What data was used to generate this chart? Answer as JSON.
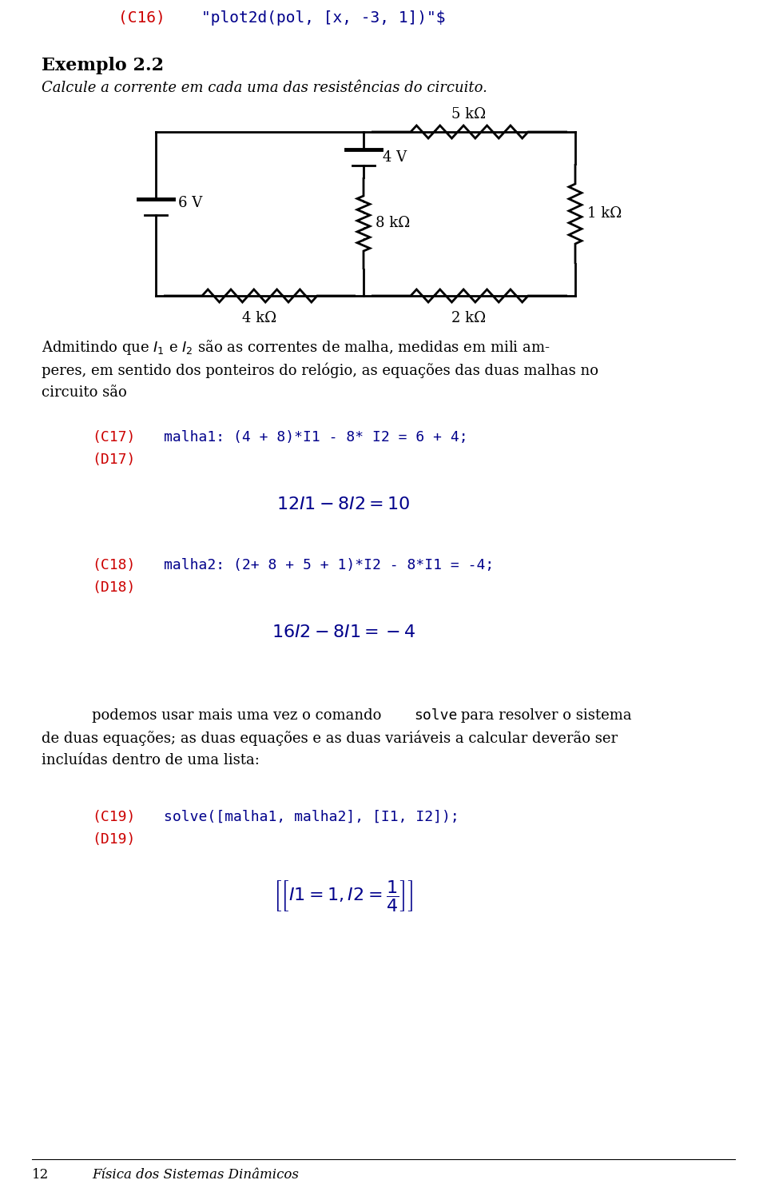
{
  "bg_color": "#ffffff",
  "red_color": "#cc0000",
  "blue_color": "#00008B",
  "black_color": "#000000",
  "c16_red": "(C16)",
  "c16_blue": "\"plot2d(pol, [x, -3, 1])\"$",
  "exemplo_title": "Exemplo 2.2",
  "exemplo_subtitle": "Calcule a corrente em cada uma das resistências do circuito.",
  "body_line1": "Admitindo que $I_1$ e $I_2$ são as correntes de malha, medidas em mili am-",
  "body_line2": "peres, em sentido dos ponteiros do relógio, as equações das duas malhas no",
  "body_line3": "circuito são",
  "c17_label": "(C17)",
  "c17_code": "malha1: (4 + 8)*I1 - 8* I2 = 6 + 4;",
  "d17_label": "(D17)",
  "c18_label": "(C18)",
  "c18_code": "malha2: (2+ 8 + 5 + 1)*I2 - 8*I1 = -4;",
  "d18_label": "(D18)",
  "p2_line1a": "podemos usar mais uma vez o comando ",
  "p2_line1b": "solve",
  "p2_line1c": " para resolver o sistema",
  "p2_line2": "de duas equações; as duas equações e as duas variáveis a calcular deverão ser",
  "p2_line3": "incluídas dentro de uma lista:",
  "c19_label": "(C19)",
  "c19_code": "solve([malha1, malha2], [I1, I2]);",
  "d19_label": "(D19)",
  "footer_num": "12",
  "footer_text": "Física dos Sistemas Dinâmicos"
}
